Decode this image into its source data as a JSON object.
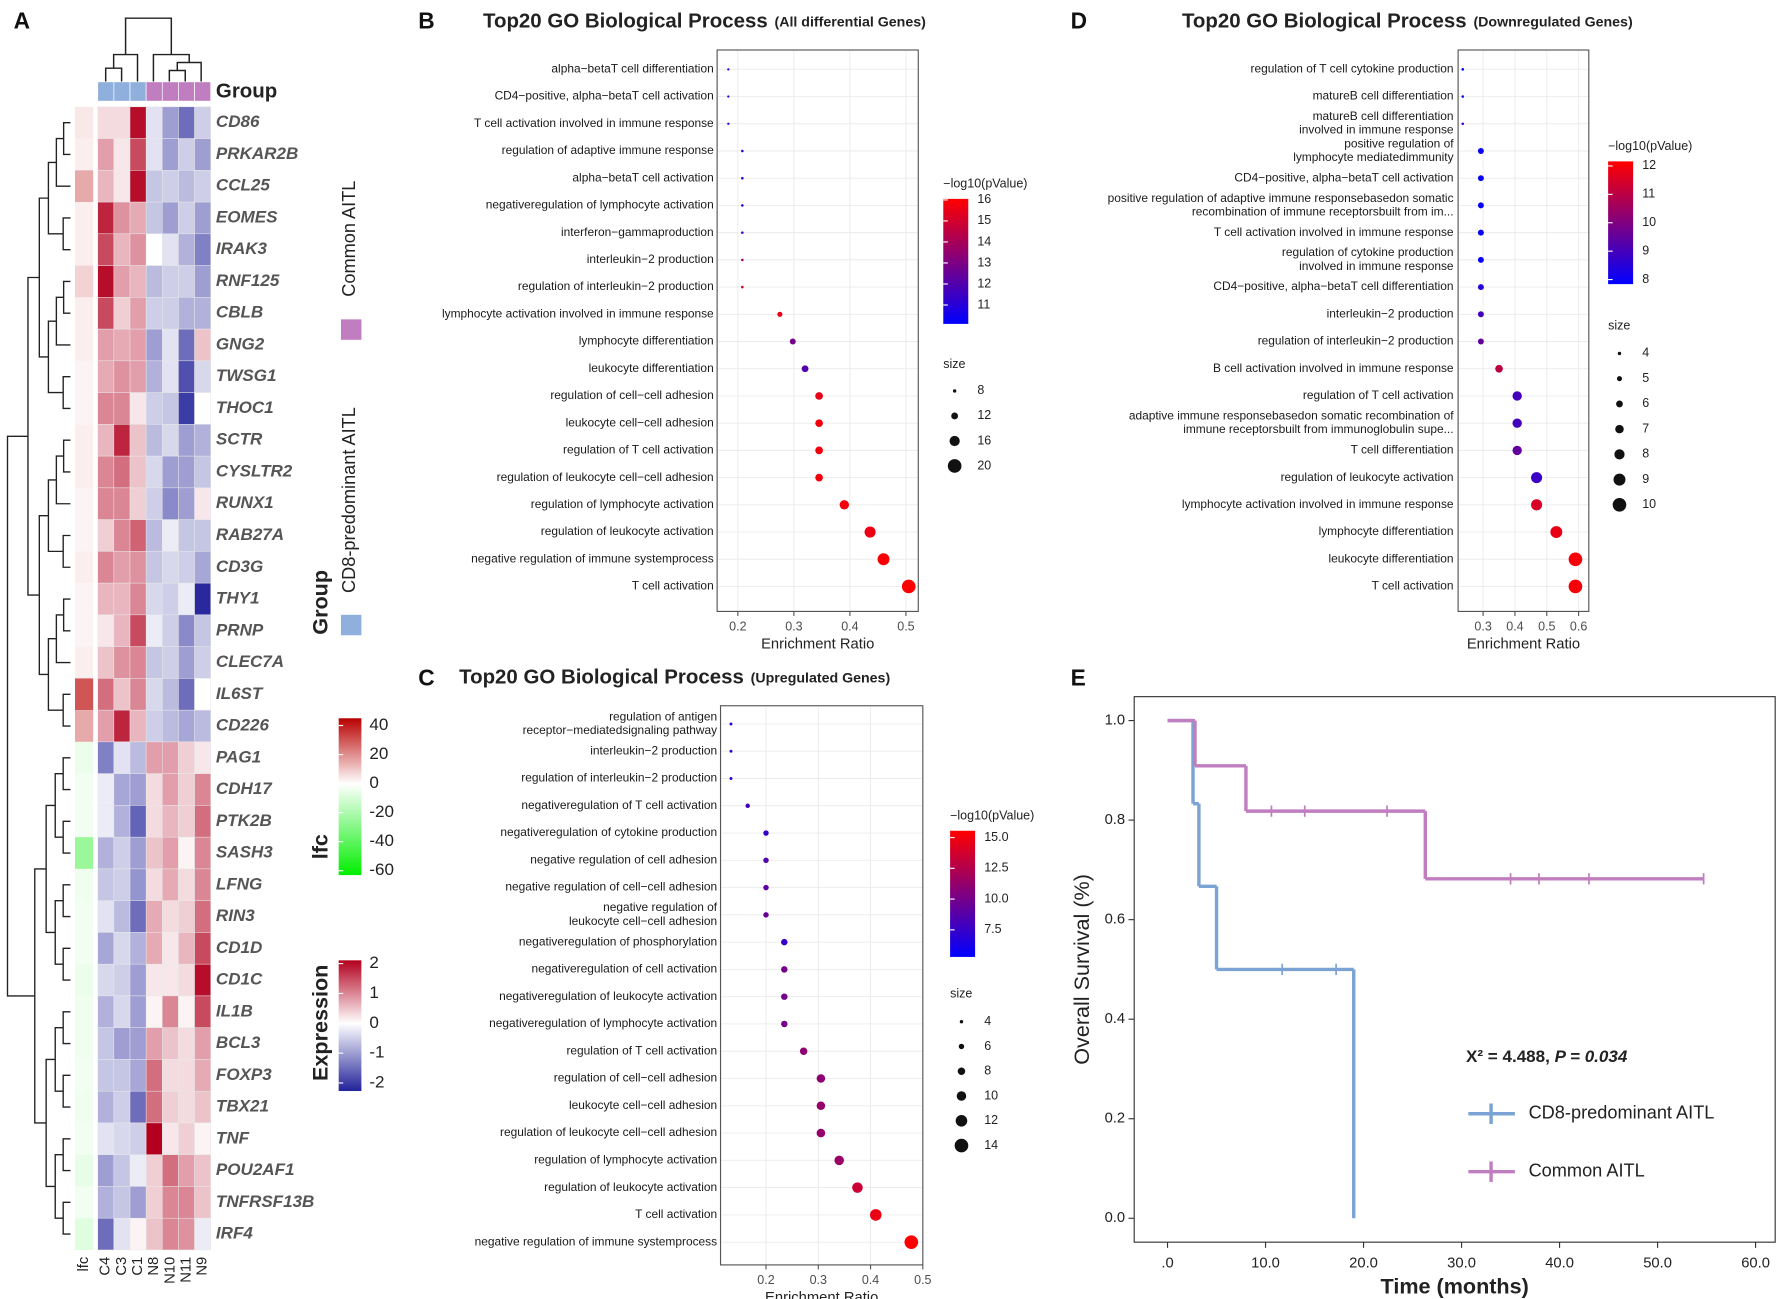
{
  "chart_data": [
    {
      "type": "heatmap",
      "panel": "A",
      "group_title": "Group",
      "group_legend_title": "Group",
      "groups": [
        {
          "name": "Common AITL",
          "color": "#c07ec0"
        },
        {
          "name": "CD8-predominant AITL",
          "color": "#8fb0dc"
        }
      ],
      "columns": [
        "C4",
        "C3",
        "C1",
        "N8",
        "N10",
        "N11",
        "N9"
      ],
      "column_groups": [
        1,
        1,
        1,
        0,
        0,
        0,
        0
      ],
      "rows": [
        "CD86",
        "PRKAR2B",
        "CCL25",
        "EOMES",
        "IRAK3",
        "RNF125",
        "CBLB",
        "GNG2",
        "TWSG1",
        "THOC1",
        "SCTR",
        "CYSLTR2",
        "RUNX1",
        "RAB27A",
        "CD3G",
        "THY1",
        "PRNP",
        "CLEC7A",
        "IL6ST",
        "CD226",
        "PAG1",
        "CDH17",
        "PTK2B",
        "SASH3",
        "LFNG",
        "RIN3",
        "CD1D",
        "CD1C",
        "IL1B",
        "BCL3",
        "FOXP3",
        "TBX21",
        "TNF",
        "POU2AF1",
        "TNFRSF13B",
        "IRF4"
      ],
      "values": [
        [
          0.3,
          0.3,
          2,
          -0.3,
          -1,
          -1.5,
          -0.5
        ],
        [
          0.8,
          0.2,
          1.5,
          -0.3,
          -1,
          -0.5,
          -1
        ],
        [
          0.6,
          0.2,
          2,
          -0.6,
          -0.5,
          -0.7,
          -0.5
        ],
        [
          1.8,
          0.9,
          0.7,
          -0.6,
          -1,
          -0.5,
          -1
        ],
        [
          1.5,
          0.6,
          0.9,
          0,
          -0.3,
          -0.8,
          -1.3
        ],
        [
          2,
          0.8,
          0.6,
          -0.7,
          -0.5,
          -0.5,
          -1
        ],
        [
          1.5,
          0.4,
          0.8,
          -0.5,
          -0.5,
          -0.8,
          -0.8
        ],
        [
          0.8,
          0.7,
          0.8,
          -1,
          -0.3,
          -1.5,
          0.5
        ],
        [
          0.7,
          0.9,
          0.8,
          -0.8,
          -0.3,
          -1.8,
          -0.4
        ],
        [
          1,
          1,
          0.2,
          -0.5,
          -0.6,
          -2,
          0
        ],
        [
          0.6,
          1.8,
          0.5,
          -0.7,
          -0.4,
          -1,
          -0.8
        ],
        [
          1,
          1.2,
          0.5,
          -0.4,
          -1,
          -1,
          -0.6
        ],
        [
          1,
          1,
          0.4,
          -0.5,
          -1.2,
          -1,
          0.2
        ],
        [
          0.4,
          1,
          1.3,
          -0.7,
          -0.2,
          -0.6,
          -0.6
        ],
        [
          1,
          0.8,
          0.9,
          -0.6,
          -0.4,
          -0.5,
          -0.9
        ],
        [
          0.6,
          0.6,
          1,
          -0.4,
          -0.5,
          -0.2,
          -2.2
        ],
        [
          0.2,
          0.6,
          1.5,
          -0.2,
          -0.5,
          -1.2,
          -0.6
        ],
        [
          0.5,
          0.9,
          1,
          -0.6,
          -0.5,
          -1,
          -0.5
        ],
        [
          1.2,
          0.5,
          1,
          -0.4,
          -0.7,
          -1.5,
          0
        ],
        [
          0.8,
          1.8,
          0.6,
          -0.5,
          -0.7,
          -0.9,
          -0.7
        ],
        [
          -1.3,
          -0.3,
          -0.7,
          0.8,
          0.8,
          0.4,
          0.2
        ],
        [
          -0.2,
          -0.9,
          -1,
          0.3,
          0.8,
          0.4,
          1
        ],
        [
          -0.2,
          -0.8,
          -1.6,
          0.3,
          0.6,
          0.4,
          1.2
        ],
        [
          -0.8,
          -0.5,
          -1,
          0.5,
          0.8,
          0.1,
          1
        ],
        [
          -0.6,
          -0.5,
          -1.1,
          0.3,
          0.7,
          0.3,
          1
        ],
        [
          -0.3,
          -0.7,
          -1.5,
          0.7,
          0.3,
          0.4,
          1.2
        ],
        [
          -0.9,
          -0.4,
          -0.8,
          0.7,
          0.2,
          0.6,
          1.5
        ],
        [
          -0.4,
          -0.5,
          -1,
          0.2,
          0.2,
          0.3,
          2
        ],
        [
          -0.8,
          -0.4,
          -1,
          0.1,
          1,
          0.1,
          1.5
        ],
        [
          -0.6,
          -1,
          -1,
          0.8,
          0.5,
          0.3,
          0.8
        ],
        [
          -0.6,
          -0.6,
          -0.9,
          1.2,
          0.3,
          0.3,
          0.7
        ],
        [
          -0.8,
          -0.5,
          -1.5,
          1.2,
          0.4,
          0.3,
          0.5
        ],
        [
          -0.3,
          -0.4,
          -0.5,
          2.2,
          0.2,
          0.4,
          0.1
        ],
        [
          -1,
          -0.6,
          -0.2,
          0.4,
          1.2,
          0.8,
          0.5
        ],
        [
          -0.8,
          -0.6,
          -1,
          0.4,
          1,
          1,
          0.5
        ],
        [
          -1.5,
          -0.3,
          0.1,
          0.5,
          1,
          0.9,
          -0.2
        ]
      ],
      "lfc_column": {
        "label": "lfc",
        "values": [
          4,
          3,
          15,
          3,
          3,
          8,
          3,
          3,
          2,
          2,
          3,
          3,
          2,
          2,
          3,
          2,
          2,
          3,
          30,
          15,
          -5,
          -3,
          -3,
          -25,
          -4,
          -3,
          -3,
          -5,
          -4,
          -4,
          -3,
          -4,
          -3,
          -6,
          -3,
          -8
        ]
      },
      "expression_scale": {
        "title": "Expression",
        "lim": [
          -2.27,
          2.11
        ],
        "ticks": [
          2,
          1,
          0,
          -1,
          -2
        ],
        "colors": [
          "#22229a",
          "#ffffff",
          "#b2001e"
        ]
      },
      "lfc_scale": {
        "title": "lfc",
        "lim": [
          -63,
          45
        ],
        "ticks": [
          40,
          20,
          0,
          -20,
          -40,
          -60
        ],
        "colors": [
          "#00ee00",
          "#ffffff",
          "#b80000"
        ]
      }
    },
    {
      "type": "bubble",
      "panel": "B",
      "title": "Top20 GO Biological Process",
      "subtitle": "(All differential Genes)",
      "categories": [
        [
          "alpha−betaT cell differentiation"
        ],
        [
          "CD4−positive, alpha−betaT cell activation"
        ],
        [
          "T cell activation involved in immune response"
        ],
        [
          "regulation of adaptive immune response"
        ],
        [
          "alpha−betaT cell activation"
        ],
        [
          "negativeregulation of lymphocyte activation"
        ],
        [
          "interferon−gammaproduction"
        ],
        [
          "interleukin−2 production"
        ],
        [
          "regulation of interleukin−2 production"
        ],
        [
          "lymphocyte activation involved in immune response"
        ],
        [
          "lymphocyte differentiation"
        ],
        [
          "leukocyte differentiation"
        ],
        [
          "regulation of cell−cell adhesion"
        ],
        [
          "leukocyte cell−cell adhesion"
        ],
        [
          "regulation of T cell activation"
        ],
        [
          "regulation of leukocyte cell−cell adhesion"
        ],
        [
          "regulation of lymphocyte activation"
        ],
        [
          "regulation of leukocyte activation"
        ],
        [
          "negative regulation of immune systemprocess"
        ],
        [
          "T cell activation"
        ]
      ],
      "values": [
        0.183,
        0.183,
        0.183,
        0.208,
        0.208,
        0.208,
        0.208,
        0.208,
        0.208,
        0.275,
        0.298,
        0.32,
        0.345,
        0.345,
        0.345,
        0.345,
        0.39,
        0.436,
        0.46,
        0.505
      ],
      "color_values": [
        10.5,
        10.5,
        10.5,
        11.2,
        11.3,
        11.0,
        11.5,
        14,
        15,
        15.5,
        12.8,
        12,
        15.5,
        15.8,
        15.8,
        15.8,
        15.8,
        15.6,
        15.9,
        16
      ],
      "size_values": [
        4,
        4,
        4,
        7,
        7,
        7,
        7,
        7,
        7,
        10,
        11,
        12,
        13,
        13,
        13,
        13,
        15,
        17,
        18,
        20
      ],
      "xlim": [
        0.163,
        0.522
      ],
      "xticks": [
        0.2,
        0.3,
        0.4,
        0.5
      ],
      "xlabel": "Enrichment Ratio",
      "grid": true,
      "color_title": "−log10(pValue)",
      "color_lim": [
        10.1,
        16.05
      ],
      "color_ticks": [
        16,
        15,
        14,
        13,
        12,
        11
      ],
      "colors": [
        "#0000ff",
        "#ff0000"
      ],
      "size_title": "size",
      "size_ticks": [
        8,
        12,
        16,
        20
      ]
    },
    {
      "type": "bubble",
      "panel": "C",
      "title": "Top20 GO Biological Process",
      "subtitle": "(Upregulated Genes)",
      "categories": [
        [
          "regulation of antigen",
          "receptor−mediatedsignaling pathway"
        ],
        [
          "interleukin−2 production"
        ],
        [
          "regulation of interleukin−2 production"
        ],
        [
          "negativeregulation of T cell activation"
        ],
        [
          "negativeregulation of cytokine production"
        ],
        [
          "negative regulation of cell adhesion"
        ],
        [
          "negative regulation of cell−cell adhesion"
        ],
        [
          "negative regulation of",
          "leukocyte cell−cell adhesion"
        ],
        [
          "negativeregulation of phosphorylation"
        ],
        [
          "negativeregulation of cell activation"
        ],
        [
          "negativeregulation of leukocyte activation"
        ],
        [
          "negativeregulation of lymphocyte activation"
        ],
        [
          "regulation of T cell activation"
        ],
        [
          "regulation of cell−cell adhesion"
        ],
        [
          "leukocyte cell−cell adhesion"
        ],
        [
          "regulation of leukocyte cell−cell adhesion"
        ],
        [
          "regulation of lymphocyte activation"
        ],
        [
          "regulation of leukocyte activation"
        ],
        [
          "T cell activation"
        ],
        [
          "negative regulation of immune systemprocess"
        ]
      ],
      "values": [
        0.133,
        0.133,
        0.133,
        0.165,
        0.2,
        0.2,
        0.2,
        0.2,
        0.235,
        0.235,
        0.235,
        0.235,
        0.272,
        0.305,
        0.305,
        0.305,
        0.34,
        0.375,
        0.41,
        0.478
      ],
      "color_values": [
        7,
        7,
        7,
        7.8,
        7.5,
        8.5,
        9,
        9.5,
        7.5,
        10,
        10,
        10,
        11,
        11,
        11.3,
        11.3,
        11.5,
        13.5,
        14.8,
        15.5
      ],
      "size_values": [
        3.5,
        3.5,
        3.5,
        5,
        6,
        6,
        6,
        6,
        7,
        7,
        7,
        7,
        8,
        9,
        9,
        9,
        10,
        11,
        12,
        14
      ],
      "xlim": [
        0.113,
        0.5
      ],
      "xticks": [
        0.2,
        0.3,
        0.4,
        0.5
      ],
      "xlabel": "Enrichment Ratio",
      "grid": true,
      "color_title": "−log10(pValue)",
      "color_lim": [
        5.3,
        15.55
      ],
      "color_ticks": [
        {
          "value": 15,
          "label": "15.0"
        },
        {
          "value": 12.5,
          "label": "12.5"
        },
        {
          "value": 10,
          "label": "10.0"
        },
        {
          "value": 7.5,
          "label": "7.5"
        }
      ],
      "colors": [
        "#0000ff",
        "#ff0000"
      ],
      "size_title": "size",
      "size_ticks": [
        4,
        6,
        8,
        10,
        12,
        14
      ]
    },
    {
      "type": "bubble",
      "panel": "D",
      "title": "Top20 GO Biological Process",
      "subtitle": "(Downregulated Genes)",
      "categories": [
        [
          "regulation of T cell cytokine production"
        ],
        [
          "matureB cell differentiation"
        ],
        [
          "matureB cell differentiation",
          "involved in immune response"
        ],
        [
          "positive regulation of",
          "lymphocyte mediatedimmunity"
        ],
        [
          "CD4−positive, alpha−betaT cell activation"
        ],
        [
          "positive regulation of adaptive immune responsebasedon somatic",
          "recombination of immune receptorsbuilt from im..."
        ],
        [
          "T cell activation involved in immune response"
        ],
        [
          "regulation of cytokine production",
          "involved in immune response"
        ],
        [
          "CD4−positive, alpha−betaT cell differentiation"
        ],
        [
          "interleukin−2 production"
        ],
        [
          "regulation of interleukin−2 production"
        ],
        [
          "B cell activation involved in immune response"
        ],
        [
          "regulation of T cell activation"
        ],
        [
          "adaptive immune responsebasedon somatic recombination of",
          "immune receptorsbuilt from immunoglobulin supe..."
        ],
        [
          "T cell differentiation"
        ],
        [
          "regulation of leukocyte activation"
        ],
        [
          "lymphocyte activation involved in immune response"
        ],
        [
          "lymphocyte differentiation"
        ],
        [
          "leukocyte differentiation"
        ],
        [
          "T cell activation"
        ]
      ],
      "values": [
        0.236,
        0.236,
        0.236,
        0.293,
        0.293,
        0.293,
        0.293,
        0.293,
        0.293,
        0.293,
        0.293,
        0.35,
        0.407,
        0.407,
        0.407,
        0.468,
        0.468,
        0.53,
        0.59,
        0.59
      ],
      "color_values": [
        7.8,
        8,
        9,
        8,
        8,
        8,
        8,
        8,
        8.5,
        9,
        9.5,
        11,
        9,
        9,
        9.5,
        8.8,
        11.5,
        11.8,
        12,
        12
      ],
      "size_values": [
        3.5,
        3.5,
        3.5,
        5.5,
        5.5,
        5.5,
        5.5,
        5.5,
        5.5,
        5.5,
        5.5,
        6.5,
        7.5,
        7.5,
        7.5,
        8.5,
        8.5,
        9,
        10,
        10
      ],
      "xlim": [
        0.2214,
        0.632
      ],
      "xticks": [
        0.3,
        0.4,
        0.5,
        0.6
      ],
      "xlabel": "Enrichment Ratio",
      "grid": true,
      "color_title": "−log10(pValue)",
      "color_lim": [
        7.84,
        12.16
      ],
      "color_ticks": [
        12,
        11,
        10,
        9,
        8
      ],
      "colors": [
        "#0000ff",
        "#ff0000"
      ],
      "size_title": "size",
      "size_ticks": [
        4,
        5,
        6,
        7,
        8,
        9,
        10
      ]
    },
    {
      "type": "survival",
      "panel": "E",
      "xlabel": "Time (months)",
      "ylabel": "Overall Survival (%)",
      "xlim": [
        -3.4,
        62
      ],
      "ylim": [
        -0.048,
        1.048
      ],
      "xticks": [
        {
          "value": 0,
          "label": ".0"
        },
        {
          "value": 10,
          "label": "10.0"
        },
        {
          "value": 20,
          "label": "20.0"
        },
        {
          "value": 30,
          "label": "30.0"
        },
        {
          "value": 40,
          "label": "40.0"
        },
        {
          "value": 50,
          "label": "50.0"
        },
        {
          "value": 60,
          "label": "60.0"
        }
      ],
      "yticks": [
        {
          "value": 0,
          "label": "0.0"
        },
        {
          "value": 0.2,
          "label": "0.2"
        },
        {
          "value": 0.4,
          "label": "0.4"
        },
        {
          "value": 0.6,
          "label": "0.6"
        },
        {
          "value": 0.8,
          "label": "0.8"
        },
        {
          "value": 1,
          "label": "1.0"
        }
      ],
      "annotation": [
        "X² = 4.488, ",
        "P = 0.034"
      ],
      "series": [
        {
          "name": "CD8-predominant AITL",
          "color": "#7ba3d4",
          "x": [
            0,
            2.6,
            3.2,
            5,
            19
          ],
          "values": [
            1,
            0.833,
            0.667,
            0.5,
            0
          ],
          "censored": [
            11.7,
            17.2
          ]
        },
        {
          "name": "Common AITL",
          "color": "#c07ec0",
          "x": [
            0,
            2.8,
            8,
            26.3
          ],
          "values": [
            1,
            0.909,
            0.818,
            0.682
          ],
          "censored": [
            10.6,
            14,
            22.4,
            35,
            37.9,
            43,
            54.7
          ]
        }
      ]
    }
  ]
}
